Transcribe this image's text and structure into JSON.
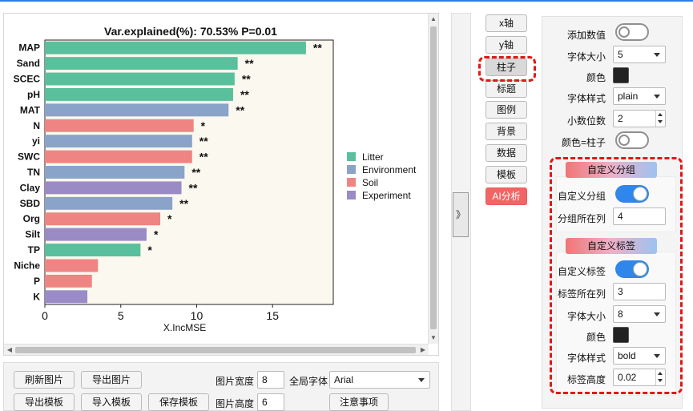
{
  "chart_data": {
    "type": "bar",
    "orientation": "horizontal",
    "title": "Var.explained(%): 70.53%   P=0.01",
    "xlabel": "X.IncMSE",
    "ylabel": "",
    "xlim": [
      0,
      19
    ],
    "xticks": [
      0,
      5,
      10,
      15
    ],
    "categories": [
      "MAP",
      "Sand",
      "SCEC",
      "pH",
      "MAT",
      "N",
      "yi",
      "SWC",
      "TN",
      "Clay",
      "SBD",
      "Org",
      "Silt",
      "TP",
      "Niche",
      "P",
      "K"
    ],
    "values": [
      17.2,
      12.7,
      12.5,
      12.4,
      12.1,
      9.8,
      9.7,
      9.7,
      9.2,
      9.0,
      8.4,
      7.6,
      6.7,
      6.3,
      3.5,
      3.1,
      2.8
    ],
    "groups": [
      "Litter",
      "Litter",
      "Litter",
      "Litter",
      "Environment",
      "Soil",
      "Environment",
      "Soil",
      "Environment",
      "Experiment",
      "Environment",
      "Soil",
      "Experiment",
      "Litter",
      "Soil",
      "Soil",
      "Experiment"
    ],
    "significance": [
      "**",
      "**",
      "**",
      "**",
      "**",
      "*",
      "**",
      "**",
      "**",
      "**",
      "**",
      "*",
      "*",
      "*",
      "",
      "",
      ""
    ],
    "legend": [
      {
        "name": "Litter",
        "color": "#5abf9c"
      },
      {
        "name": "Environment",
        "color": "#8aa3c8"
      },
      {
        "name": "Soil",
        "color": "#ee8583"
      },
      {
        "name": "Experiment",
        "color": "#9a8bc6"
      }
    ],
    "legend_position": "right",
    "plot_background": "#fbf8ef"
  },
  "bottom": {
    "refresh": "刷新图片",
    "export_image": "导出图片",
    "export_template": "导出模板",
    "import_template": "导入模板",
    "save_template": "保存模板",
    "width_label": "图片宽度",
    "width_value": "8",
    "height_label": "图片高度",
    "height_value": "6",
    "font_label": "全局字体",
    "font_value": "Arial",
    "notes": "注意事项"
  },
  "collapse_glyph": "》",
  "tabs": [
    "x轴",
    "y轴",
    "柱子",
    "标题",
    "图例",
    "背景",
    "数据",
    "模板",
    "AI分析"
  ],
  "settings": {
    "add_value_label": "添加数值",
    "font_size_label": "字体大小",
    "font_size_value": "5",
    "color_label": "颜色",
    "font_style_label": "字体样式",
    "font_style_value": "plain",
    "decimals_label": "小数位数",
    "decimals_value": "2",
    "color_eq_bar_label": "颜色=柱子",
    "group_section_title": "自定义分组",
    "custom_group_label": "自定义分组",
    "group_col_label": "分组所在列",
    "group_col_value": "4",
    "label_section_title": "自定义标签",
    "custom_label_label": "自定义标签",
    "label_col_label": "标签所在列",
    "label_col_value": "3",
    "label_font_size_label": "字体大小",
    "label_font_size_value": "8",
    "label_color_label": "颜色",
    "label_font_style_label": "字体样式",
    "label_font_style_value": "bold",
    "label_height_label": "标签高度",
    "label_height_value": "0.02"
  }
}
